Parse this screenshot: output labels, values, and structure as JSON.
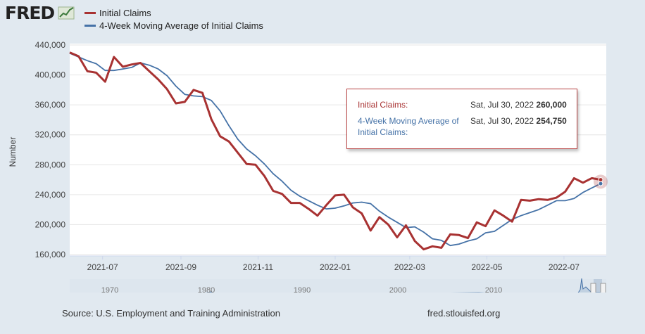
{
  "app": {
    "logo_text": "FRED",
    "source_text": "Source: U.S. Employment and Training Administration",
    "site_text": "fred.stlouisfed.org"
  },
  "colors": {
    "series1": "#a83232",
    "series2": "#4572a7",
    "background": "#e1e9f0",
    "plot_bg": "#ffffff"
  },
  "tooltip": {
    "series1_label": "Initial Claims:",
    "series1_date": "Sat, Jul 30, 2022",
    "series1_value": "260,000",
    "series2_label": "4-Week Moving Average of Initial Claims:",
    "series2_date": "Sat, Jul 30, 2022",
    "series2_value": "254,750"
  },
  "chart_data": {
    "type": "line",
    "title": "",
    "xlabel": "",
    "ylabel": "Number",
    "ylim": [
      160000,
      440000
    ],
    "yticks": [
      160000,
      200000,
      240000,
      280000,
      320000,
      360000,
      400000,
      440000
    ],
    "ytick_labels": [
      "160,000",
      "200,000",
      "240,000",
      "280,000",
      "320,000",
      "360,000",
      "400,000",
      "440,000"
    ],
    "xlim": [
      "2021-06-05",
      "2022-07-30"
    ],
    "xticks": [
      "2021-07-01",
      "2021-09-01",
      "2021-11-01",
      "2022-01-01",
      "2022-03-01",
      "2022-05-01",
      "2022-07-01"
    ],
    "xtick_labels": [
      "2021-07",
      "2021-09",
      "2021-11",
      "2022-01",
      "2022-03",
      "2022-05",
      "2022-07"
    ],
    "grid": true,
    "legend_position": "top-left",
    "series": [
      {
        "name": "Initial Claims",
        "color": "#a83232",
        "x": [
          "2021-06-05",
          "2021-06-12",
          "2021-06-19",
          "2021-06-26",
          "2021-07-03",
          "2021-07-10",
          "2021-07-17",
          "2021-07-24",
          "2021-07-31",
          "2021-08-07",
          "2021-08-14",
          "2021-08-21",
          "2021-08-28",
          "2021-09-04",
          "2021-09-11",
          "2021-09-18",
          "2021-09-25",
          "2021-10-02",
          "2021-10-09",
          "2021-10-16",
          "2021-10-23",
          "2021-10-30",
          "2021-11-06",
          "2021-11-13",
          "2021-11-20",
          "2021-11-27",
          "2021-12-04",
          "2021-12-11",
          "2021-12-18",
          "2021-12-25",
          "2022-01-01",
          "2022-01-08",
          "2022-01-15",
          "2022-01-22",
          "2022-01-29",
          "2022-02-05",
          "2022-02-12",
          "2022-02-19",
          "2022-02-26",
          "2022-03-05",
          "2022-03-12",
          "2022-03-19",
          "2022-03-26",
          "2022-04-02",
          "2022-04-09",
          "2022-04-16",
          "2022-04-23",
          "2022-04-30",
          "2022-05-07",
          "2022-05-14",
          "2022-05-21",
          "2022-05-28",
          "2022-06-04",
          "2022-06-11",
          "2022-06-18",
          "2022-06-25",
          "2022-07-02",
          "2022-07-09",
          "2022-07-16",
          "2022-07-23",
          "2022-07-30"
        ],
        "values": [
          430000,
          425000,
          405000,
          403000,
          391000,
          424000,
          411000,
          414000,
          416000,
          405000,
          394000,
          381000,
          362000,
          364000,
          380000,
          376000,
          341000,
          318000,
          311000,
          296000,
          281000,
          280000,
          265000,
          245000,
          241000,
          229000,
          229000,
          221000,
          212000,
          226000,
          239000,
          240000,
          223000,
          215000,
          192000,
          210000,
          200000,
          183000,
          199000,
          178000,
          167000,
          171000,
          169000,
          187000,
          186000,
          182000,
          203000,
          198000,
          219000,
          212000,
          204000,
          233000,
          232000,
          234000,
          233000,
          236000,
          244000,
          262000,
          256000,
          262000,
          260000
        ]
      },
      {
        "name": "4-Week Moving Average of Initial Claims",
        "color": "#4572a7",
        "x": [
          "2021-06-05",
          "2021-06-12",
          "2021-06-19",
          "2021-06-26",
          "2021-07-03",
          "2021-07-10",
          "2021-07-17",
          "2021-07-24",
          "2021-07-31",
          "2021-08-07",
          "2021-08-14",
          "2021-08-21",
          "2021-08-28",
          "2021-09-04",
          "2021-09-11",
          "2021-09-18",
          "2021-09-25",
          "2021-10-02",
          "2021-10-09",
          "2021-10-16",
          "2021-10-23",
          "2021-10-30",
          "2021-11-06",
          "2021-11-13",
          "2021-11-20",
          "2021-11-27",
          "2021-12-04",
          "2021-12-11",
          "2021-12-18",
          "2021-12-25",
          "2022-01-01",
          "2022-01-08",
          "2022-01-15",
          "2022-01-22",
          "2022-01-29",
          "2022-02-05",
          "2022-02-12",
          "2022-02-19",
          "2022-02-26",
          "2022-03-05",
          "2022-03-12",
          "2022-03-19",
          "2022-03-26",
          "2022-04-02",
          "2022-04-09",
          "2022-04-16",
          "2022-04-23",
          "2022-04-30",
          "2022-05-07",
          "2022-05-14",
          "2022-05-21",
          "2022-05-28",
          "2022-06-04",
          "2022-06-11",
          "2022-06-18",
          "2022-06-25",
          "2022-07-02",
          "2022-07-09",
          "2022-07-16",
          "2022-07-23",
          "2022-07-30"
        ],
        "values": [
          429000,
          424000,
          419000,
          415000,
          406000,
          406000,
          408000,
          410000,
          416000,
          413000,
          408000,
          399000,
          385000,
          374000,
          372000,
          371000,
          366000,
          352000,
          332000,
          314000,
          301000,
          292000,
          281000,
          268000,
          258000,
          246000,
          238000,
          232000,
          226000,
          221000,
          222000,
          225000,
          229000,
          230000,
          228000,
          218000,
          210000,
          203000,
          196000,
          197000,
          190000,
          181000,
          179000,
          172000,
          174000,
          178000,
          181000,
          189000,
          191000,
          199000,
          207000,
          212000,
          216000,
          220000,
          226000,
          232000,
          232000,
          235000,
          243000,
          249000,
          254750
        ]
      }
    ]
  }
}
